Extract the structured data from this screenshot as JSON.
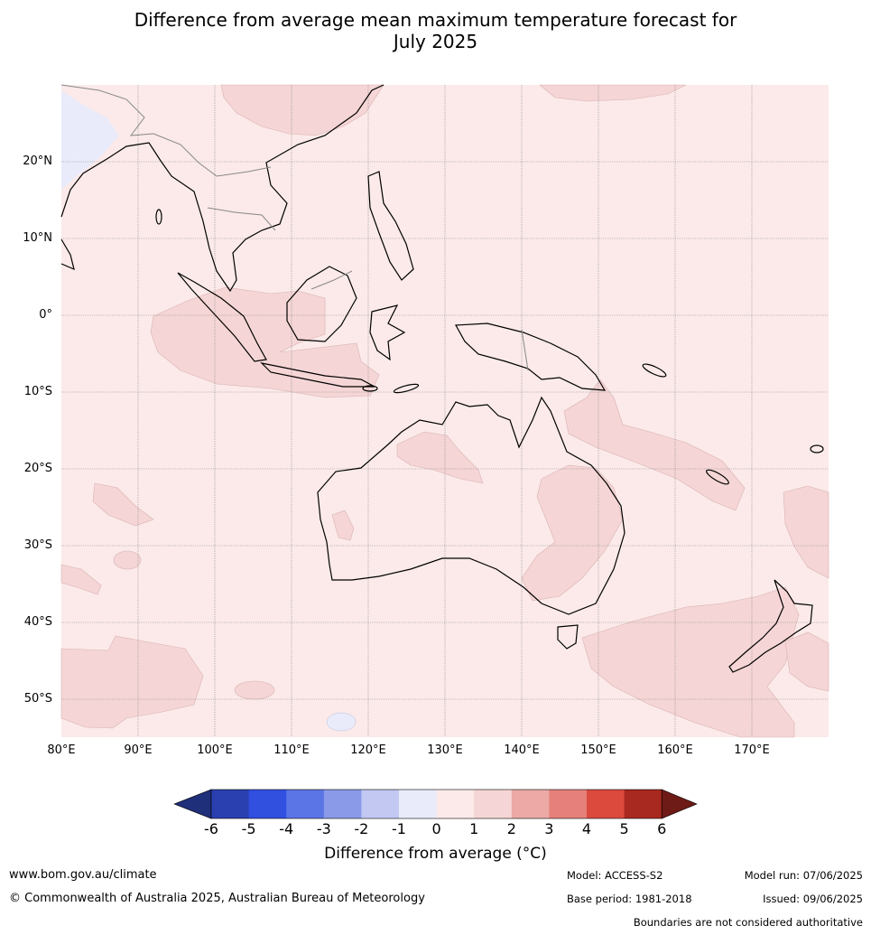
{
  "title_line1": "Difference from average mean maximum temperature forecast for",
  "title_line2": "July 2025",
  "lat_labels": [
    "20°N",
    "10°N",
    "0°",
    "10°S",
    "20°S",
    "30°S",
    "40°S",
    "50°S"
  ],
  "lon_labels": [
    "80°E",
    "90°E",
    "100°E",
    "110°E",
    "120°E",
    "130°E",
    "140°E",
    "150°E",
    "160°E",
    "170°E"
  ],
  "colorbar": {
    "ticks": [
      "-6",
      "-5",
      "-4",
      "-3",
      "-2",
      "-1",
      "0",
      "1",
      "2",
      "3",
      "4",
      "5",
      "6"
    ],
    "colors": [
      "#1f2f7a",
      "#2a3fb0",
      "#3150e0",
      "#5c75e6",
      "#8a9ae8",
      "#c2c8f2",
      "#e9ebfa",
      "#fbeae9",
      "#f5d5d5",
      "#eca9a5",
      "#e6807a",
      "#dc4a3e",
      "#a8291f",
      "#6e1a16"
    ],
    "label": "Difference from average (°C)"
  },
  "footer": {
    "site": "www.bom.gov.au/climate",
    "copyright": "© Commonwealth of Australia 2025, Australian Bureau of Meteorology",
    "model": "Model: ACCESS-S2",
    "base_period": "Base period: 1981-2018",
    "model_run": "Model run: 07/06/2025",
    "issued": "Issued: 09/06/2025",
    "disclaimer": "Boundaries are not considered authoritative"
  }
}
